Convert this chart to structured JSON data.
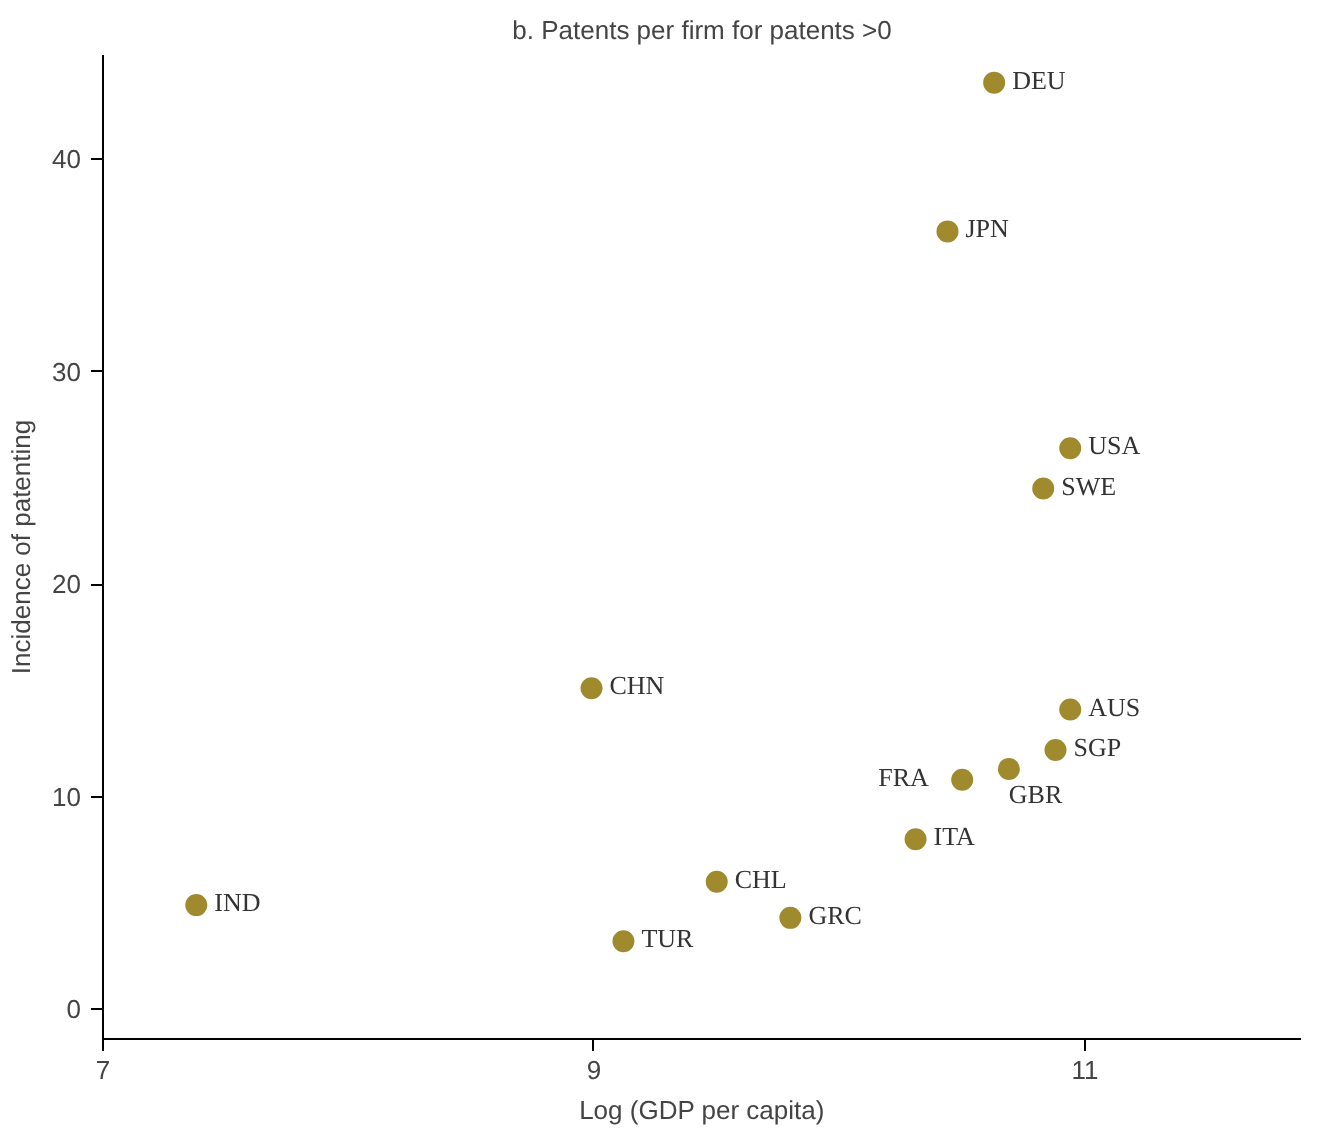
{
  "chart_data": {
    "type": "scatter",
    "title": "b. Patents per firm for patents >0",
    "xlabel": "Log (GDP per capita)",
    "ylabel": "Incidence of patenting",
    "xlim": [
      7,
      11.88
    ],
    "ylim": [
      -1.4,
      44.9
    ],
    "xticks": [
      7,
      9,
      11
    ],
    "yticks": [
      0,
      10,
      20,
      30,
      40
    ],
    "grid": false,
    "marker": "circle",
    "series": [
      {
        "color": "#a08a2e",
        "x": [
          10.63,
          10.44,
          10.94,
          10.83,
          8.99,
          10.94,
          10.88,
          10.69,
          10.5,
          10.31,
          9.5,
          9.8,
          9.12,
          7.38
        ],
        "values": [
          43.6,
          36.6,
          26.4,
          24.5,
          15.1,
          14.1,
          12.2,
          11.3,
          10.8,
          8.0,
          6.0,
          4.3,
          3.2,
          4.9
        ],
        "value_labels": [
          "DEU",
          "JPN",
          "USA",
          "SWE",
          "CHN",
          "AUS",
          "SGP",
          "GBR",
          "FRA",
          "ITA",
          "CHL",
          "GRC",
          "TUR",
          "IND"
        ]
      }
    ]
  }
}
